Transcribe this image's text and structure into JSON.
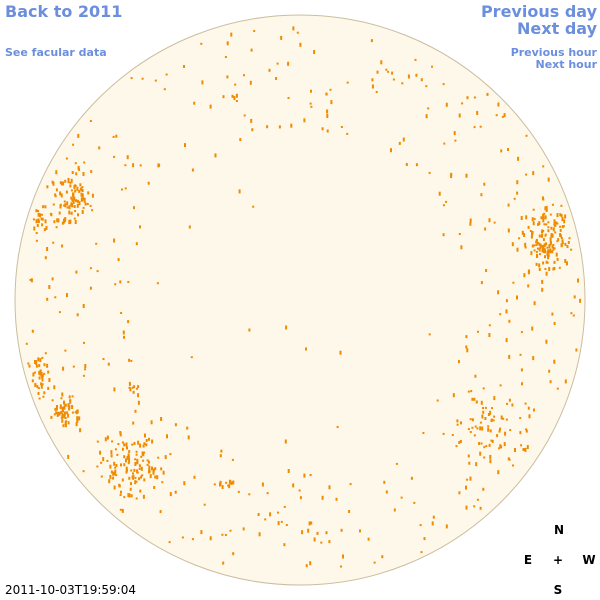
{
  "navigation": {
    "back": "Back to 2011",
    "facular_data": "See facular data",
    "previous_day": "Previous day",
    "next_day": "Next day",
    "previous_hour": "Previous hour",
    "next_hour": "Next hour"
  },
  "timestamp": "2011-10-03T19:59:04",
  "compass": {
    "north": "N",
    "east": "E",
    "center": "+",
    "west": "W",
    "south": "S"
  }
}
